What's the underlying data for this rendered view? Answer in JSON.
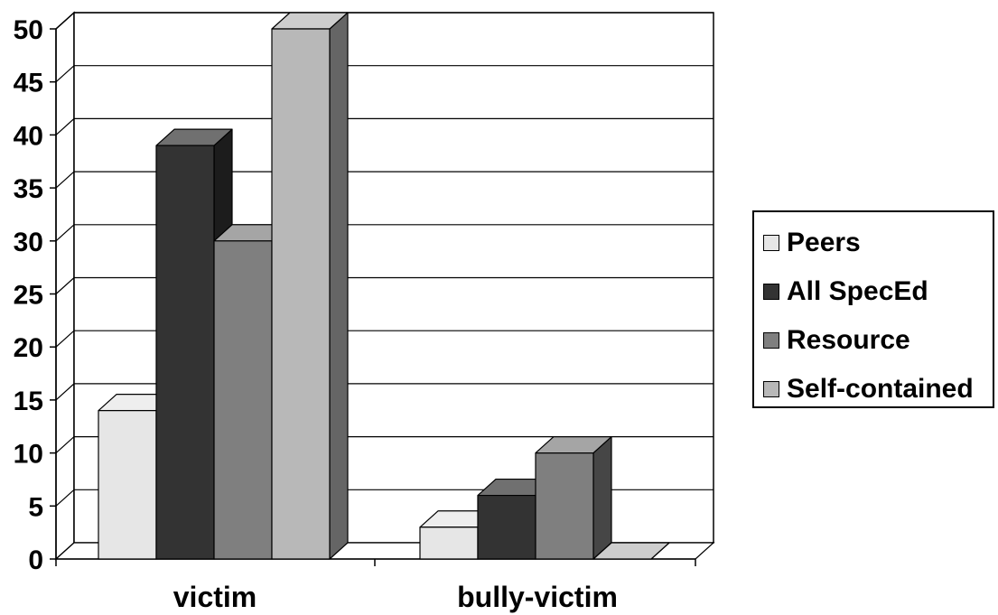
{
  "chart_data": {
    "type": "bar",
    "style": "3d-clustered-column",
    "categories": [
      "victim",
      "bully-victim"
    ],
    "series": [
      {
        "name": "Peers",
        "values": [
          14,
          3
        ],
        "color": "#E6E6E6"
      },
      {
        "name": "All SpecEd",
        "values": [
          39,
          6
        ],
        "color": "#333333"
      },
      {
        "name": "Resource",
        "values": [
          30,
          10
        ],
        "color": "#7F7F7F"
      },
      {
        "name": "Self-contained",
        "values": [
          50,
          0
        ],
        "color": "#B8B8B8"
      }
    ],
    "y_ticks": [
      "0",
      "5",
      "10",
      "15",
      "20",
      "25",
      "30",
      "35",
      "40",
      "45",
      "50"
    ],
    "ylim": [
      0,
      50
    ],
    "grid": true,
    "legend_position": "right"
  }
}
